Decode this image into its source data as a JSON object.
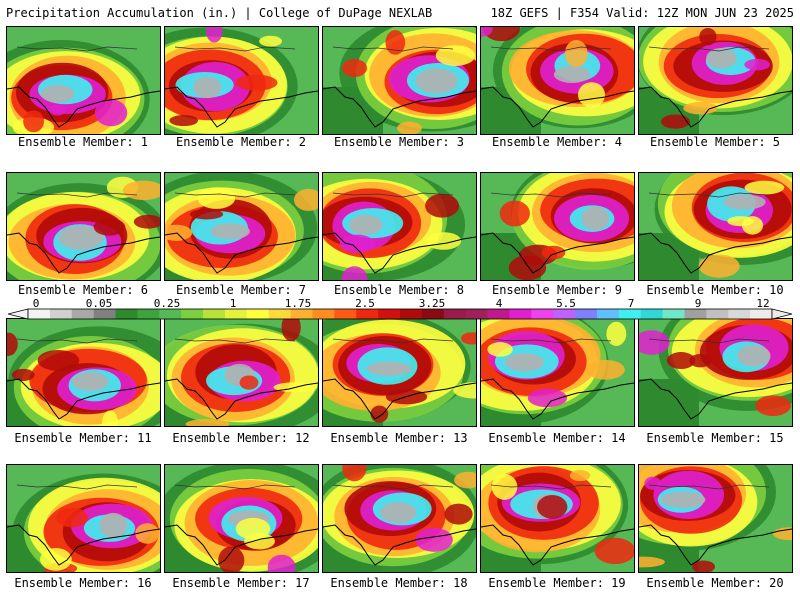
{
  "header": {
    "title_left": "Precipitation Accumulation (in.) | College of DuPage NEXLAB",
    "title_right": "18Z GEFS | F354 Valid: 12Z MON JUN 23 2025"
  },
  "members": [
    "Ensemble Member: 1",
    "Ensemble Member: 2",
    "Ensemble Member: 3",
    "Ensemble Member: 4",
    "Ensemble Member: 5",
    "Ensemble Member: 6",
    "Ensemble Member: 7",
    "Ensemble Member: 8",
    "Ensemble Member: 9",
    "Ensemble Member: 10",
    "Ensemble Member: 11",
    "Ensemble Member: 12",
    "Ensemble Member: 13",
    "Ensemble Member: 14",
    "Ensemble Member: 15",
    "Ensemble Member: 16",
    "Ensemble Member: 17",
    "Ensemble Member: 18",
    "Ensemble Member: 19",
    "Ensemble Member: 20"
  ],
  "colorbar": {
    "ticks": [
      "0",
      "0.05",
      "0.25",
      "1",
      "1.75",
      "2.5",
      "3.25",
      "4",
      "5.5",
      "7",
      "9",
      "12"
    ],
    "colors": [
      "#f2f2f2",
      "#d0d0d0",
      "#a8a8a8",
      "#808080",
      "#2f8a2f",
      "#3fa23f",
      "#56b956",
      "#7ccf3f",
      "#b6e23a",
      "#e6f23a",
      "#ffff40",
      "#ffd83a",
      "#ffb030",
      "#ff8c1e",
      "#ff5a14",
      "#f0280f",
      "#d40f0f",
      "#b00a0a",
      "#8c0a14",
      "#9a1a4a",
      "#a0205a",
      "#c01890",
      "#e020d0",
      "#f040f0",
      "#c060ff",
      "#8080ff",
      "#60c0ff",
      "#40f0f0",
      "#30d8d8",
      "#70e8c8",
      "#a0a0a0",
      "#c0c0c0",
      "#d8d8d8",
      "#ececec"
    ]
  }
}
